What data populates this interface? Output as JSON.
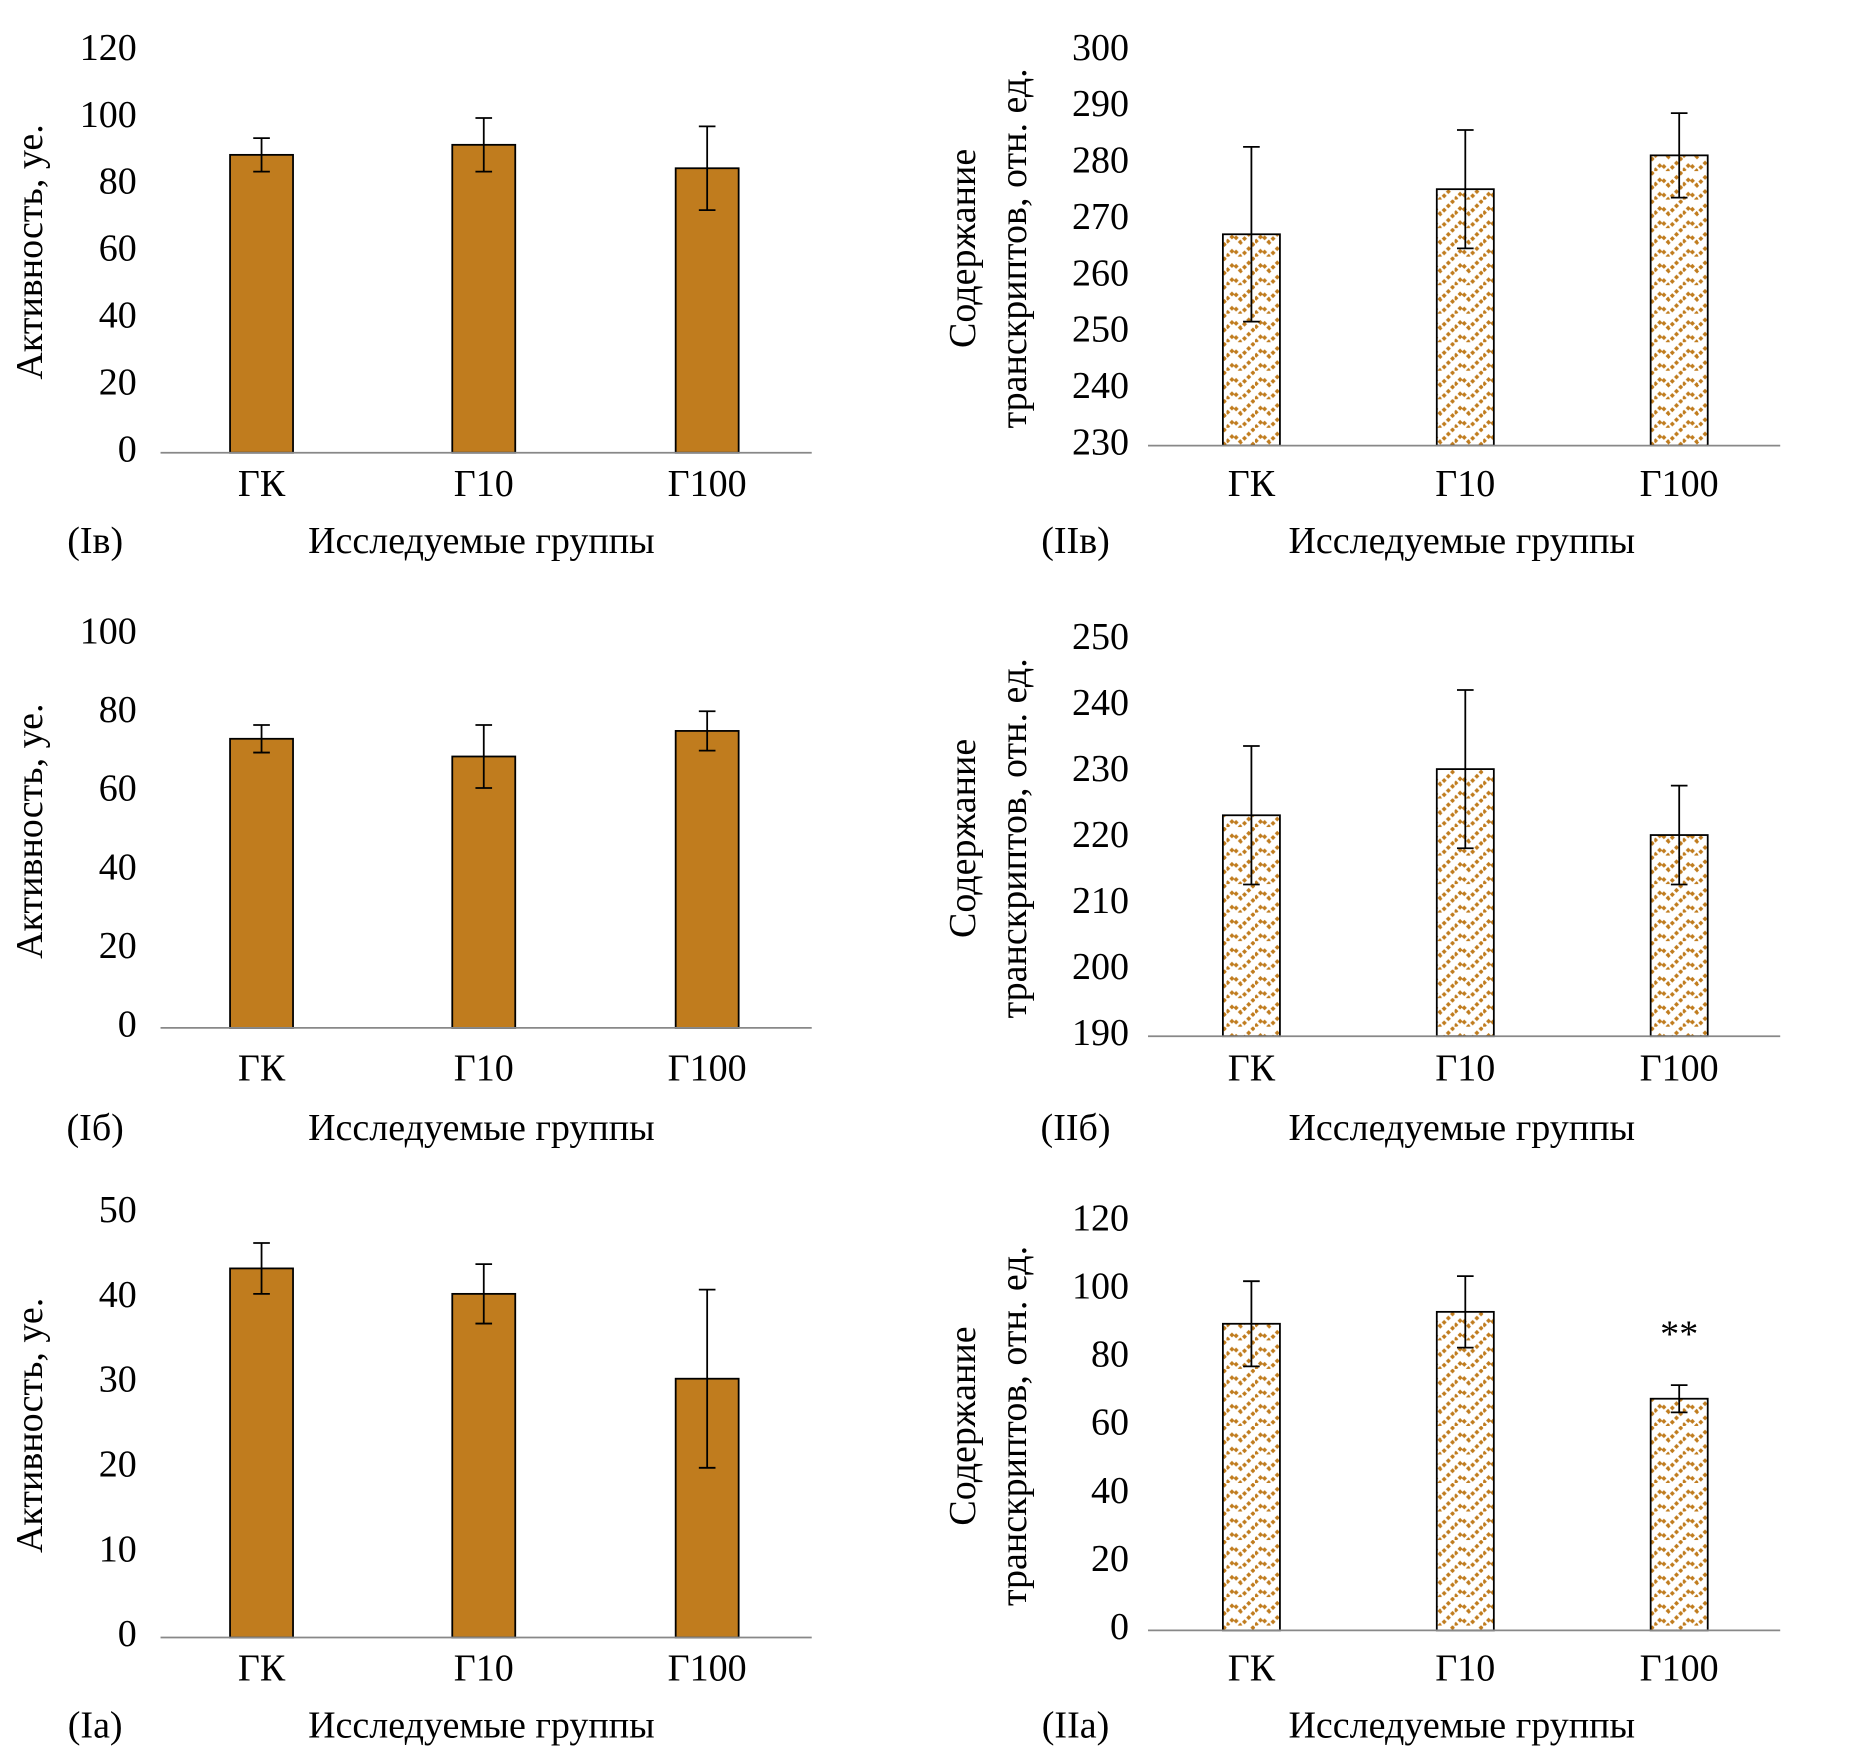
{
  "chart_data": [
    {
      "type": "bar",
      "panel": "(Iв)",
      "xlabel": "Исследуемые группы",
      "ylabel": [
        "Активность, уе."
      ],
      "categories": [
        "ГК",
        "Г10",
        "Г100"
      ],
      "values": [
        89,
        92,
        85
      ],
      "errors": [
        5,
        8,
        12.5
      ],
      "ylim": [
        0,
        120
      ],
      "yticks": [
        0,
        20,
        40,
        60,
        80,
        100,
        120
      ],
      "color": "#c07c1e",
      "hatch": false
    },
    {
      "type": "bar",
      "panel": "(IIв)",
      "xlabel": "Исследуемые группы",
      "ylabel": [
        "Содержание",
        "транскриптов, отн. ед."
      ],
      "categories": [
        "ГК",
        "Г10",
        "Г100"
      ],
      "values": [
        267.5,
        275.5,
        281.5
      ],
      "errors": [
        15.5,
        10.5,
        7.5
      ],
      "ylim": [
        230,
        300
      ],
      "yticks": [
        230,
        240,
        250,
        260,
        270,
        280,
        290,
        300
      ],
      "color": "#c07c1e",
      "hatch": true
    },
    {
      "type": "bar",
      "panel": "(Iб)",
      "xlabel": "Исследуемые группы",
      "ylabel": [
        "Активность, уе."
      ],
      "categories": [
        "ГК",
        "Г10",
        "Г100"
      ],
      "values": [
        73.5,
        69,
        75.5
      ],
      "errors": [
        3.5,
        8,
        5
      ],
      "ylim": [
        0,
        100
      ],
      "yticks": [
        0,
        20,
        40,
        60,
        80,
        100
      ],
      "color": "#c07c1e",
      "hatch": false
    },
    {
      "type": "bar",
      "panel": "(IIб)",
      "xlabel": "Исследуемые группы",
      "ylabel": [
        "Содержание",
        "транскриптов, отн. ед."
      ],
      "categories": [
        "ГК",
        "Г10",
        "Г100"
      ],
      "values": [
        223.5,
        230.5,
        220.5
      ],
      "errors": [
        10.5,
        12,
        7.5
      ],
      "ylim": [
        190,
        250
      ],
      "yticks": [
        190,
        200,
        210,
        220,
        230,
        240,
        250
      ],
      "color": "#c07c1e",
      "hatch": true
    },
    {
      "type": "bar",
      "panel": "(Iа)",
      "xlabel": "Исследуемые группы",
      "ylabel": [
        "Активность, уе."
      ],
      "categories": [
        "ГК",
        "Г10",
        "Г100"
      ],
      "values": [
        43.5,
        40.5,
        30.5
      ],
      "errors": [
        3,
        3.5,
        10.5
      ],
      "ylim": [
        0,
        50
      ],
      "yticks": [
        0,
        10,
        20,
        30,
        40,
        50
      ],
      "color": "#c07c1e",
      "hatch": false
    },
    {
      "type": "bar",
      "panel": "(IIа)",
      "xlabel": "Исследуемые группы",
      "ylabel": [
        "Содержание",
        "транскриптов, отн. ед."
      ],
      "categories": [
        "ГК",
        "Г10",
        "Г100"
      ],
      "values": [
        90,
        93.5,
        68
      ],
      "errors": [
        12.5,
        10.5,
        4
      ],
      "ylim": [
        0,
        120
      ],
      "yticks": [
        0,
        20,
        40,
        60,
        80,
        100,
        120
      ],
      "color": "#c07c1e",
      "hatch": true,
      "annotation": {
        "text": "**",
        "category": "Г100"
      }
    }
  ]
}
